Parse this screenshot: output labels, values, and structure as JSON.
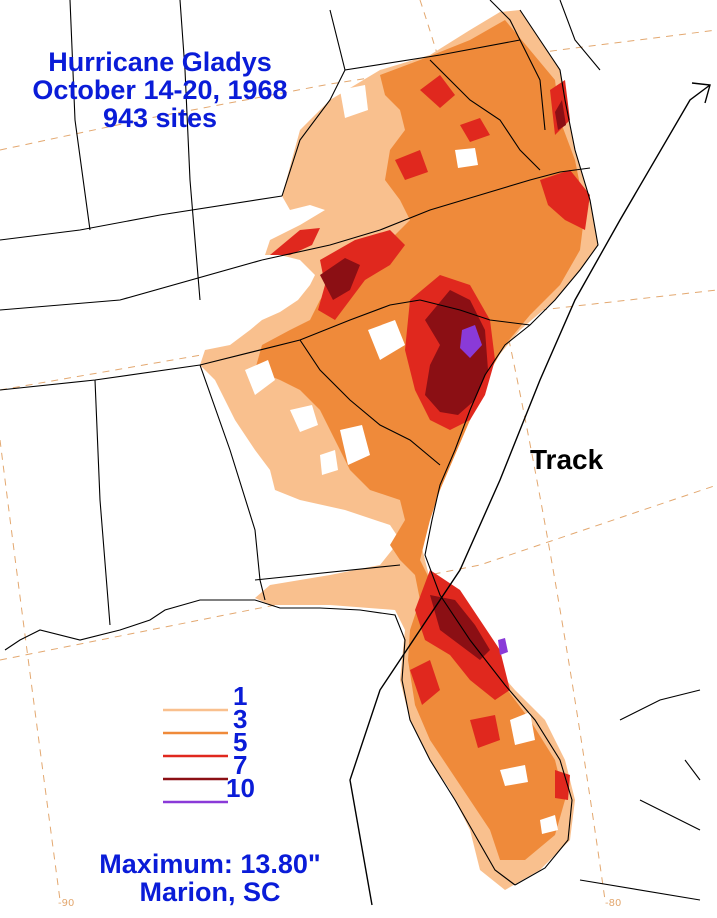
{
  "title": {
    "line1": "Hurricane Gladys",
    "line2": "October 14-20, 1968",
    "line3": "943 sites"
  },
  "track_label": "Track",
  "legend": {
    "unit": "inches",
    "items": [
      {
        "label": "1",
        "color": "#f9c08e"
      },
      {
        "label": "3",
        "color": "#ef8a3a"
      },
      {
        "label": "5",
        "color": "#e0281e"
      },
      {
        "label": "7",
        "color": "#8b0f14"
      },
      {
        "label": "10",
        "color": "#8a3ad8"
      }
    ]
  },
  "maximum": {
    "line1": "Maximum:  13.80\"",
    "line2": "Marion, SC"
  },
  "longitude_labels": [
    "-90",
    "-80"
  ],
  "colors": {
    "text_blue": "#0a1cd8",
    "graticule": "#e3a870",
    "outline": "#000000"
  }
}
